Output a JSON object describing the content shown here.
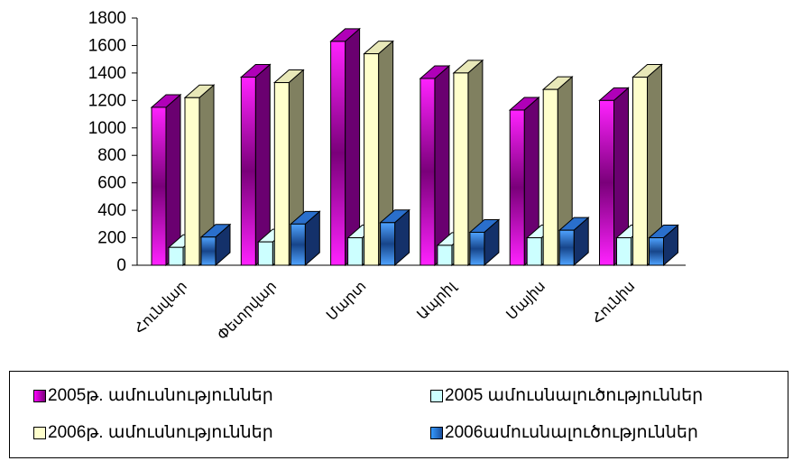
{
  "chart_data": {
    "type": "bar",
    "title": "",
    "xlabel": "",
    "ylabel": "",
    "ylim": [
      0,
      1800
    ],
    "yticks": [
      0,
      200,
      400,
      600,
      800,
      1000,
      1200,
      1400,
      1600,
      1800
    ],
    "categories": [
      "Հունվար",
      "Փետրվար",
      "Մարտ",
      "Ապրիլ",
      "Մայիս",
      "Հունիս"
    ],
    "series": [
      {
        "name": "2005թ. ամուսնություններ",
        "color": "#ff00ff",
        "values": [
          1150,
          1370,
          1630,
          1360,
          1130,
          1200
        ]
      },
      {
        "name": "2005 ամուսնալուծություններ",
        "color": "#ccffff",
        "values": [
          130,
          170,
          200,
          145,
          200,
          200
        ]
      },
      {
        "name": "2006թ. ամուսնություններ",
        "color": "#ffffcc",
        "values": [
          1220,
          1330,
          1540,
          1400,
          1280,
          1370
        ]
      },
      {
        "name": "2006ամուսնալուծություններ",
        "color": "#3399ff",
        "values": [
          205,
          300,
          310,
          240,
          255,
          200
        ]
      }
    ],
    "grid": false,
    "legend_position": "bottom",
    "style": "3d-clustered-column"
  }
}
